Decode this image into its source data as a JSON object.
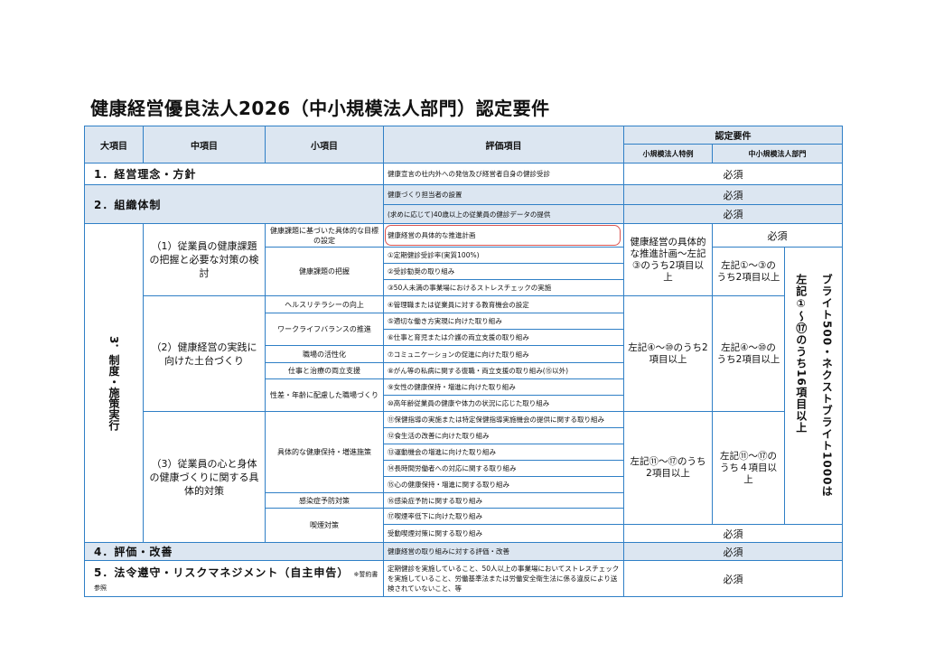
{
  "title": "健康経営優良法人2026（中小規模法人部門）認定要件",
  "header": {
    "major": "大項目",
    "middle": "中項目",
    "minor": "小項目",
    "evaluation": "評価項目",
    "certification": "認定要件",
    "small_special": "小規模法人特例",
    "sme_division": "中小規模法人部門"
  },
  "sections": {
    "s1": {
      "label": "1．経営理念・方針",
      "item": "健康宣言の社内外への発信及び経営者自身の健診受診",
      "req": "必須"
    },
    "s2": {
      "label": "2．組織体制",
      "items": [
        "健康づくり担当者の設置",
        "(求めに応じて)40歳以上の従業員の健診データの提供"
      ],
      "req": [
        "必須",
        "必須"
      ]
    },
    "s3": {
      "label": "3．制度・施策実行",
      "middle": [
        "（1）従業員の健康課題の把握と必要な対策の検討",
        "（2）健康経営の実践に向けた土台づくり",
        "（3）従業員の心と身体の健康づくりに関する具体的対策"
      ],
      "minor": [
        "健康課題に基づいた具体的な目標の設定",
        "健康課題の把握",
        "ヘルスリテラシーの向上",
        "ワークライフバランスの推進",
        "職場の活性化",
        "仕事と治療の両立支援",
        "性差・年齢に配慮した職場づくり",
        "具体的な健康保持・増進施策",
        "感染症予防対策",
        "喫煙対策"
      ],
      "items": [
        "健康経営の具体的な推進計画",
        "①定期健診受診率(実質100%)",
        "②受診勧奨の取り組み",
        "③50人未満の事業場におけるストレスチェックの実施",
        "④管理職または従業員に対する教育機会の設定",
        "⑤適切な働き方実現に向けた取り組み",
        "⑥仕事と育児または介護の両立支援の取り組み",
        "⑦コミュニケーションの促進に向けた取り組み",
        "⑧がん等の私病に関する復職・両立支援の取り組み(⑮以外)",
        "⑨女性の健康保持・増進に向けた取り組み",
        "⑩高年齢従業員の健康や体力の状況に応じた取り組み",
        "⑪保健指導の実施または特定保健指導実施機会の提供に関する取り組み",
        "⑫食生活の改善に向けた取り組み",
        "⑬運動機会の増進に向けた取り組み",
        "⑭長時間労働者への対応に関する取り組み",
        "⑮心の健康保持・増進に関する取り組み",
        "⑯感染症予防に関する取り組み",
        "⑰喫煙率低下に向けた取り組み",
        "受動喫煙対策に関する取り組み"
      ],
      "small_req": [
        "健康経営の具体的な推進計画～左記③のうち2項目以上",
        "左記④～⑩のうち2項目以上",
        "左記⑪～⑰のうち2項目以上"
      ],
      "sme_req": [
        "必須",
        "左記①～③のうち2項目以上",
        "左記④～⑩のうち2項目以上",
        "左記⑪～⑰のうち４項目以上"
      ],
      "bright_col1": "ブライト500・ネクストブライト1000は",
      "bright_col2": "左記①～⑰のうち16項目以上",
      "smoke_req": "必須"
    },
    "s4": {
      "label": "4．評価・改善",
      "item": "健康経営の取り組みに対する評価・改善",
      "req": "必須"
    },
    "s5": {
      "label": "5．法令遵守・リスクマネジメント（自主申告）",
      "note": "※誓約書参照",
      "item": "定期健診を実施していること、50人以上の事業場においてストレスチェックを実施していること、労働基準法または労働安全衛生法に係る違反により送検されていないこと、等",
      "req": "必須"
    }
  },
  "colors": {
    "border": "#2f7fc6",
    "header_bg": "#dce6f1",
    "highlight": "#d9534f"
  }
}
